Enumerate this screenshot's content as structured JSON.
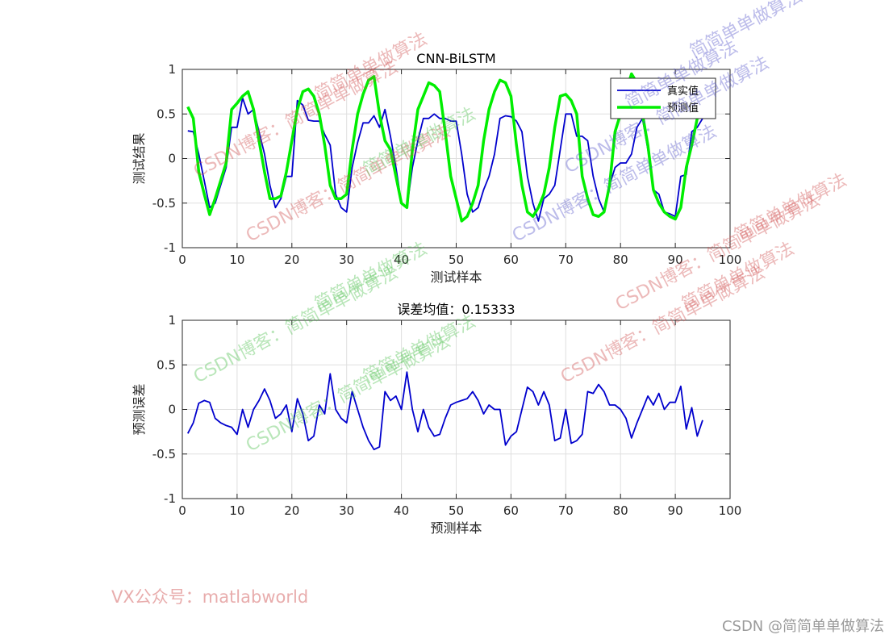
{
  "chart_data": [
    {
      "type": "line",
      "title": "CNN-BiLSTM",
      "xlabel": "测试样本",
      "ylabel": "测试结果",
      "xlim": [
        0,
        100
      ],
      "ylim": [
        -1,
        1
      ],
      "xticks": [
        0,
        10,
        20,
        30,
        40,
        50,
        60,
        70,
        80,
        90,
        100
      ],
      "yticks": [
        -1,
        -0.5,
        0,
        0.5,
        1
      ],
      "grid": true,
      "legend_position": "top-right",
      "series": [
        {
          "name": "真实值",
          "color": "#0000CD",
          "x": [
            1,
            2,
            3,
            4,
            5,
            6,
            7,
            8,
            9,
            10,
            11,
            12,
            13,
            14,
            15,
            16,
            17,
            18,
            19,
            20,
            21,
            22,
            23,
            24,
            25,
            26,
            27,
            28,
            29,
            30,
            31,
            32,
            33,
            34,
            35,
            36,
            37,
            38,
            39,
            40,
            41,
            42,
            43,
            44,
            45,
            46,
            47,
            48,
            49,
            50,
            51,
            52,
            53,
            54,
            55,
            56,
            57,
            58,
            59,
            60,
            61,
            62,
            63,
            64,
            65,
            66,
            67,
            68,
            69,
            70,
            71,
            72,
            73,
            74,
            75,
            76,
            77,
            78,
            79,
            80,
            81,
            82,
            83,
            84,
            85,
            86,
            87,
            88,
            89,
            90,
            91,
            92,
            93,
            94,
            95
          ],
          "y": [
            0.31,
            0.3,
            0.05,
            -0.25,
            -0.55,
            -0.5,
            -0.3,
            -0.1,
            0.35,
            0.35,
            0.68,
            0.5,
            0.55,
            0.3,
            0.05,
            -0.3,
            -0.55,
            -0.45,
            -0.2,
            -0.2,
            0.65,
            0.6,
            0.43,
            0.42,
            0.42,
            0.27,
            0.15,
            -0.4,
            -0.55,
            -0.6,
            -0.1,
            0.18,
            0.4,
            0.4,
            0.48,
            0.35,
            0.55,
            0.25,
            -0.1,
            -0.5,
            -0.55,
            -0.1,
            0.2,
            0.45,
            0.45,
            0.5,
            0.45,
            0.45,
            0.42,
            0.42,
            0.05,
            -0.4,
            -0.6,
            -0.55,
            -0.35,
            -0.2,
            0.05,
            0.45,
            0.48,
            0.47,
            0.42,
            0.3,
            -0.2,
            -0.5,
            -0.7,
            -0.45,
            -0.4,
            -0.3,
            0.1,
            0.5,
            0.5,
            0.25,
            0.25,
            0.2,
            -0.2,
            -0.45,
            -0.6,
            -0.3,
            -0.1,
            -0.05,
            -0.05,
            0.05,
            0.35,
            0.45,
            0.1,
            -0.35,
            -0.4,
            -0.6,
            -0.62,
            -0.65,
            -0.2,
            -0.18,
            0.3,
            0.35,
            0.45
          ]
        },
        {
          "name": "预测值",
          "color": "#00EE00",
          "x": [
            1,
            2,
            3,
            4,
            5,
            6,
            7,
            8,
            9,
            10,
            11,
            12,
            13,
            14,
            15,
            16,
            17,
            18,
            19,
            20,
            21,
            22,
            23,
            24,
            25,
            26,
            27,
            28,
            29,
            30,
            31,
            32,
            33,
            34,
            35,
            36,
            37,
            38,
            39,
            40,
            41,
            42,
            43,
            44,
            45,
            46,
            47,
            48,
            49,
            50,
            51,
            52,
            53,
            54,
            55,
            56,
            57,
            58,
            59,
            60,
            61,
            62,
            63,
            64,
            65,
            66,
            67,
            68,
            69,
            70,
            71,
            72,
            73,
            74,
            75,
            76,
            77,
            78,
            79,
            80,
            81,
            82,
            83,
            84,
            85,
            86,
            87,
            88,
            89,
            90,
            91,
            92,
            93,
            94,
            95
          ],
          "y": [
            0.58,
            0.45,
            -0.15,
            -0.4,
            -0.63,
            -0.45,
            -0.25,
            -0.05,
            0.55,
            0.62,
            0.7,
            0.75,
            0.55,
            0.2,
            -0.15,
            -0.45,
            -0.45,
            -0.42,
            -0.15,
            0.2,
            0.55,
            0.75,
            0.78,
            0.7,
            0.5,
            0.15,
            -0.3,
            -0.45,
            -0.45,
            -0.4,
            0.1,
            0.5,
            0.72,
            0.88,
            0.92,
            0.5,
            0.2,
            0.1,
            -0.2,
            -0.5,
            -0.55,
            0.1,
            0.55,
            0.7,
            0.85,
            0.82,
            0.75,
            0.3,
            -0.2,
            -0.45,
            -0.7,
            -0.65,
            -0.5,
            -0.3,
            0.2,
            0.55,
            0.75,
            0.88,
            0.85,
            0.7,
            0.15,
            -0.3,
            -0.6,
            -0.65,
            -0.55,
            -0.4,
            -0.1,
            0.35,
            0.7,
            0.72,
            0.65,
            0.5,
            -0.2,
            -0.45,
            -0.63,
            -0.65,
            -0.6,
            -0.3,
            0.3,
            0.5,
            0.75,
            0.95,
            0.85,
            0.5,
            0.15,
            -0.35,
            -0.5,
            -0.6,
            -0.65,
            -0.68,
            -0.55,
            -0.1,
            0.15,
            0.45,
            0.6
          ]
        }
      ]
    },
    {
      "type": "line",
      "title": "误差均值：0.15333",
      "xlabel": "预测样本",
      "ylabel": "预测误差",
      "xlim": [
        0,
        100
      ],
      "ylim": [
        -1,
        1
      ],
      "xticks": [
        0,
        10,
        20,
        30,
        40,
        50,
        60,
        70,
        80,
        90,
        100
      ],
      "yticks": [
        -1,
        -0.5,
        0,
        0.5,
        1
      ],
      "grid": true,
      "series": [
        {
          "color": "#0000CD",
          "x": [
            1,
            2,
            3,
            4,
            5,
            6,
            7,
            8,
            9,
            10,
            11,
            12,
            13,
            14,
            15,
            16,
            17,
            18,
            19,
            20,
            21,
            22,
            23,
            24,
            25,
            26,
            27,
            28,
            29,
            30,
            31,
            32,
            33,
            34,
            35,
            36,
            37,
            38,
            39,
            40,
            41,
            42,
            43,
            44,
            45,
            46,
            47,
            48,
            49,
            50,
            51,
            52,
            53,
            54,
            55,
            56,
            57,
            58,
            59,
            60,
            61,
            62,
            63,
            64,
            65,
            66,
            67,
            68,
            69,
            70,
            71,
            72,
            73,
            74,
            75,
            76,
            77,
            78,
            79,
            80,
            81,
            82,
            83,
            84,
            85,
            86,
            87,
            88,
            89,
            90,
            91,
            92,
            93,
            94,
            95
          ],
          "y": [
            -0.27,
            -0.15,
            0.07,
            0.1,
            0.08,
            -0.1,
            -0.15,
            -0.18,
            -0.2,
            -0.28,
            0.0,
            -0.2,
            0.0,
            0.1,
            0.23,
            0.1,
            -0.1,
            -0.05,
            0.05,
            -0.25,
            0.12,
            -0.05,
            -0.35,
            -0.3,
            0.05,
            -0.05,
            0.4,
            0.0,
            -0.1,
            -0.15,
            0.2,
            0.0,
            -0.2,
            -0.35,
            -0.45,
            -0.42,
            0.2,
            0.1,
            0.15,
            0.0,
            0.42,
            0.0,
            -0.25,
            0.0,
            -0.2,
            -0.3,
            -0.28,
            -0.1,
            0.05,
            0.08,
            0.1,
            0.12,
            0.2,
            0.1,
            -0.05,
            0.05,
            0.0,
            0.0,
            -0.4,
            -0.3,
            -0.25,
            0.0,
            0.25,
            0.2,
            0.05,
            0.2,
            0.05,
            -0.35,
            -0.32,
            0.0,
            -0.38,
            -0.35,
            -0.28,
            0.2,
            0.18,
            0.28,
            0.2,
            0.05,
            0.05,
            0.0,
            -0.1,
            -0.32,
            -0.15,
            0.0,
            0.15,
            0.05,
            0.18,
            0.0,
            0.08,
            0.08,
            0.26,
            -0.22,
            0.02,
            -0.3,
            -0.12
          ]
        }
      ]
    }
  ],
  "legend": [
    "真实值",
    "预测值"
  ],
  "watermarks": {
    "blog": "CSDN博客：简简单单做算法",
    "algo": "简简单单做算法"
  },
  "footer": {
    "vx": "VX公众号：matlabworld",
    "csdn": "CSDN @简简单单做算法"
  }
}
